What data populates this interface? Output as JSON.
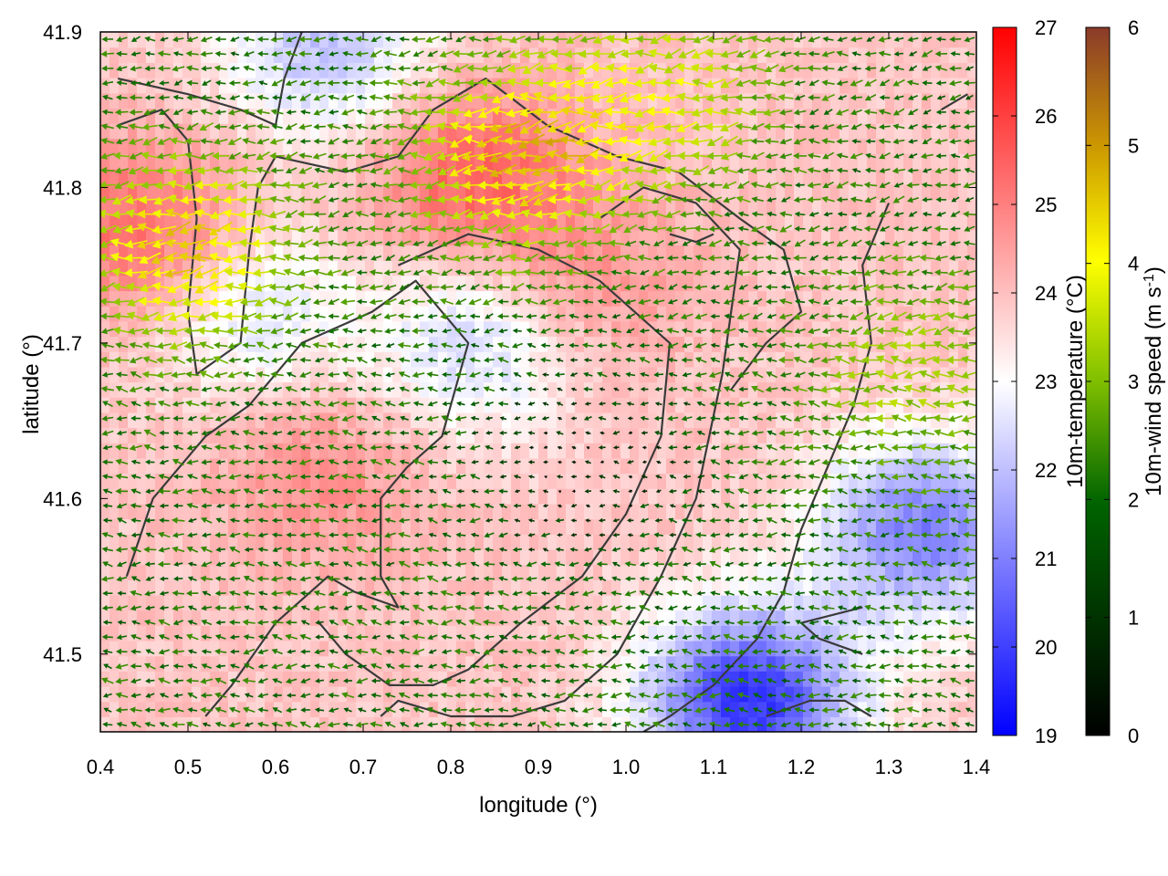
{
  "chart_data": {
    "type": "heatmap",
    "xlabel": "longitude (°)",
    "ylabel": "latitude (°)",
    "xlim": [
      0.4,
      1.4
    ],
    "ylim": [
      41.45,
      41.9
    ],
    "xticks": [
      "0.4",
      "0.5",
      "0.6",
      "0.7",
      "0.8",
      "0.9",
      "1.0",
      "1.1",
      "1.2",
      "1.3",
      "1.4"
    ],
    "yticks": [
      "41.5",
      "41.6",
      "41.7",
      "41.8",
      "41.9"
    ],
    "xtick_values": [
      0.4,
      0.5,
      0.6,
      0.7,
      0.8,
      0.9,
      1.0,
      1.1,
      1.2,
      1.3,
      1.4
    ],
    "ytick_values": [
      41.5,
      41.6,
      41.7,
      41.8,
      41.9
    ],
    "colorbars": [
      {
        "label": "10m-temperature (°C)",
        "range": [
          19,
          27
        ],
        "ticks": [
          "19",
          "20",
          "21",
          "22",
          "23",
          "24",
          "25",
          "26",
          "27"
        ],
        "palette": [
          "#0000ff",
          "#ffffff",
          "#ff0000"
        ]
      },
      {
        "label": "10m-wind speed (m s",
        "label_sup": "-1",
        "label_close": ")",
        "range": [
          0,
          6
        ],
        "ticks": [
          "0",
          "1",
          "2",
          "3",
          "4",
          "5",
          "6"
        ],
        "palette": [
          "#000000",
          "#006400",
          "#7fbf00",
          "#ffff00",
          "#cc9900",
          "#8b3a2a"
        ]
      }
    ],
    "temperature_field": {
      "description": "background 23.5-24.5 °C over most of the domain",
      "warm_areas": [
        {
          "lon": 0.45,
          "lat": 41.77,
          "temp": 25.5
        },
        {
          "lon": 0.82,
          "lat": 41.81,
          "temp": 25.5
        },
        {
          "lon": 0.65,
          "lat": 41.62,
          "temp": 24.8
        },
        {
          "lon": 0.95,
          "lat": 41.74,
          "temp": 24.8
        }
      ],
      "cool_areas": [
        {
          "lon": 1.14,
          "lat": 41.47,
          "temp": 19.8
        },
        {
          "lon": 1.34,
          "lat": 41.58,
          "temp": 21.0
        },
        {
          "lon": 0.83,
          "lat": 41.7,
          "temp": 22.3
        },
        {
          "lon": 0.66,
          "lat": 41.89,
          "temp": 22.0
        },
        {
          "lon": 0.57,
          "lat": 41.72,
          "temp": 22.5
        }
      ]
    },
    "wind_field": {
      "direction": "predominantly easterly (vectors point west)",
      "strong_areas": [
        {
          "lon": 0.5,
          "lat": 41.76,
          "speed": 4.2
        },
        {
          "lon": 0.88,
          "lat": 41.82,
          "speed": 4.3
        },
        {
          "lon": 1.05,
          "lat": 41.86,
          "speed": 3.2
        },
        {
          "lon": 1.33,
          "lat": 41.68,
          "speed": 2.8
        }
      ],
      "calm_area": {
        "lon": 0.95,
        "lat": 41.62,
        "speed": 0.3
      }
    },
    "contours": [
      [
        [
          0.42,
          41.87
        ],
        [
          0.5,
          41.86
        ],
        [
          0.56,
          41.85
        ],
        [
          0.6,
          41.84
        ],
        [
          0.61,
          41.87
        ],
        [
          0.63,
          41.9
        ]
      ],
      [
        [
          0.42,
          41.84
        ],
        [
          0.47,
          41.85
        ],
        [
          0.5,
          41.83
        ],
        [
          0.51,
          41.78
        ],
        [
          0.5,
          41.72
        ],
        [
          0.51,
          41.68
        ],
        [
          0.56,
          41.7
        ],
        [
          0.57,
          41.76
        ],
        [
          0.58,
          41.8
        ],
        [
          0.6,
          41.82
        ],
        [
          0.68,
          41.81
        ],
        [
          0.74,
          41.82
        ],
        [
          0.78,
          41.85
        ],
        [
          0.84,
          41.87
        ],
        [
          0.91,
          41.84
        ],
        [
          0.99,
          41.82
        ],
        [
          1.06,
          41.81
        ],
        [
          1.13,
          41.78
        ],
        [
          1.18,
          41.76
        ],
        [
          1.2,
          41.72
        ],
        [
          1.16,
          41.7
        ],
        [
          1.12,
          41.67
        ]
      ],
      [
        [
          0.43,
          41.55
        ],
        [
          0.46,
          41.6
        ],
        [
          0.52,
          41.64
        ],
        [
          0.57,
          41.66
        ],
        [
          0.63,
          41.7
        ],
        [
          0.71,
          41.72
        ],
        [
          0.76,
          41.74
        ],
        [
          0.79,
          41.72
        ],
        [
          0.82,
          41.7
        ],
        [
          0.79,
          41.64
        ],
        [
          0.75,
          41.62
        ],
        [
          0.72,
          41.6
        ],
        [
          0.72,
          41.55
        ],
        [
          0.74,
          41.53
        ],
        [
          0.69,
          41.54
        ],
        [
          0.66,
          41.55
        ],
        [
          0.6,
          41.52
        ],
        [
          0.55,
          41.48
        ],
        [
          0.52,
          41.46
        ]
      ],
      [
        [
          0.74,
          41.75
        ],
        [
          0.82,
          41.77
        ],
        [
          0.9,
          41.76
        ],
        [
          0.97,
          41.74
        ],
        [
          1.05,
          41.7
        ],
        [
          1.04,
          41.64
        ],
        [
          1.0,
          41.59
        ],
        [
          0.95,
          41.55
        ],
        [
          0.88,
          41.52
        ],
        [
          0.82,
          41.49
        ],
        [
          0.78,
          41.48
        ],
        [
          0.73,
          41.48
        ],
        [
          0.68,
          41.5
        ],
        [
          0.65,
          41.52
        ]
      ],
      [
        [
          0.97,
          41.78
        ],
        [
          1.02,
          41.8
        ],
        [
          1.08,
          41.79
        ],
        [
          1.13,
          41.76
        ],
        [
          1.11,
          41.68
        ],
        [
          1.08,
          41.6
        ],
        [
          1.04,
          41.55
        ],
        [
          0.99,
          41.5
        ],
        [
          0.93,
          41.47
        ],
        [
          0.87,
          41.46
        ],
        [
          0.8,
          41.46
        ],
        [
          0.74,
          41.47
        ],
        [
          0.72,
          41.46
        ]
      ],
      [
        [
          1.3,
          41.79
        ],
        [
          1.27,
          41.75
        ],
        [
          1.28,
          41.7
        ],
        [
          1.26,
          41.66
        ],
        [
          1.23,
          41.62
        ],
        [
          1.2,
          41.58
        ],
        [
          1.18,
          41.54
        ],
        [
          1.15,
          41.51
        ],
        [
          1.1,
          41.48
        ],
        [
          1.05,
          41.46
        ],
        [
          1.02,
          41.45
        ]
      ],
      [
        [
          1.16,
          41.46
        ],
        [
          1.21,
          41.47
        ],
        [
          1.25,
          41.47
        ],
        [
          1.28,
          41.46
        ]
      ],
      [
        [
          1.27,
          41.5
        ],
        [
          1.22,
          41.51
        ],
        [
          1.2,
          41.52
        ],
        [
          1.27,
          41.53
        ]
      ],
      [
        [
          1.36,
          41.85
        ],
        [
          1.39,
          41.86
        ]
      ],
      [
        [
          1.05,
          41.77
        ],
        [
          1.08,
          41.765
        ],
        [
          1.1,
          41.77
        ]
      ]
    ]
  }
}
